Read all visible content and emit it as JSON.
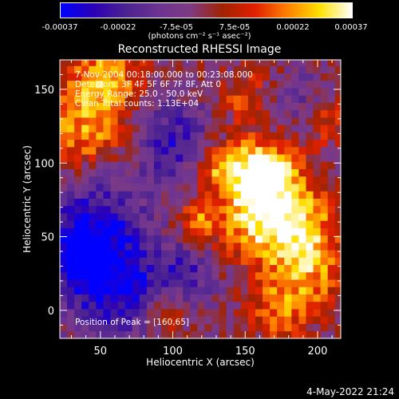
{
  "colorbar": {
    "ticks": [
      "-0.00037",
      "-0.00022",
      "-7.5e-05",
      "7.5e-05",
      "0.00022",
      "0.00037"
    ],
    "unit": "(photons cm⁻² s⁻¹ asec⁻²)",
    "colors": [
      "#0000ff",
      "#2a00b8",
      "#4b2290",
      "#6b3392",
      "#7e3b84",
      "#a02300",
      "#e02000",
      "#ff8000",
      "#ffe000",
      "#ffffff"
    ]
  },
  "chart_data": {
    "type": "heatmap",
    "title": "Reconstructed RHESSI Image",
    "xlabel": "Heliocentric X (arcsec)",
    "ylabel": "Heliocentric Y (arcsec)",
    "xlim": [
      22,
      216
    ],
    "ylim": [
      -19,
      170
    ],
    "xticks": [
      50,
      100,
      150,
      200
    ],
    "yticks": [
      0,
      50,
      100,
      150
    ],
    "value_range": [
      -0.00037,
      0.00037
    ],
    "annotations": [
      "7-Nov-2004 00:18:00.000 to 00:23:08.000",
      "Detectors: 3F 4F 5F 6F 7F 8F, Att 0",
      "Energy Range: 25.0 - 50.0 keV",
      "Clean    Total counts: 1.13E+04"
    ],
    "peak_label": "Position of Peak = [160,65]",
    "peak": [
      160,
      65
    ]
  },
  "timestamp": "4-May-2022 21:24"
}
